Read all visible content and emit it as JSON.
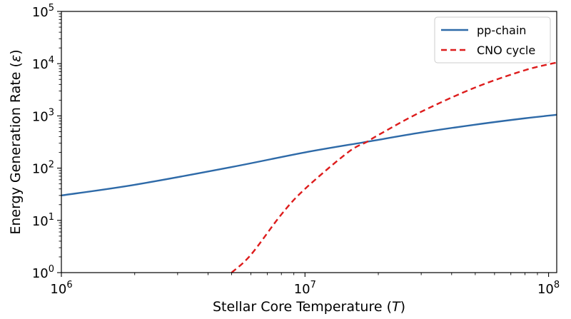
{
  "chart_data": {
    "type": "line",
    "title": "",
    "xlabel": {
      "text": "Stellar Core Temperature (",
      "symbol": "T",
      "suffix": ")"
    },
    "ylabel": {
      "text": "Energy Generation Rate (",
      "symbol": "ε",
      "suffix": ")"
    },
    "xscale": "log",
    "yscale": "log",
    "xlim": [
      1000000,
      108000000
    ],
    "ylim": [
      1,
      100000
    ],
    "xticks": [
      {
        "value": 1000000,
        "base": "10",
        "exp": "6"
      },
      {
        "value": 10000000,
        "base": "10",
        "exp": "7"
      },
      {
        "value": 100000000,
        "base": "10",
        "exp": "8"
      }
    ],
    "yticks": [
      {
        "value": 1,
        "base": "10",
        "exp": "0"
      },
      {
        "value": 10,
        "base": "10",
        "exp": "1"
      },
      {
        "value": 100,
        "base": "10",
        "exp": "2"
      },
      {
        "value": 1000,
        "base": "10",
        "exp": "3"
      },
      {
        "value": 10000,
        "base": "10",
        "exp": "4"
      },
      {
        "value": 100000,
        "base": "10",
        "exp": "5"
      }
    ],
    "grid": false,
    "legend_position": "top-right",
    "series": [
      {
        "name": "pp-chain",
        "color": "#2e6aa8",
        "style": "solid",
        "x": [
          1000000,
          2000000,
          5000000,
          10000000,
          18000000,
          30000000,
          50000000,
          80000000,
          108000000
        ],
        "y": [
          30,
          48,
          105,
          200,
          320,
          480,
          680,
          900,
          1050
        ]
      },
      {
        "name": "CNO cycle",
        "color": "#dd1c1c",
        "style": "dashed",
        "x": [
          5000000,
          6000000,
          8000000,
          10000000,
          15000000,
          18000000,
          20000000,
          30000000,
          50000000,
          80000000,
          108000000
        ],
        "y": [
          1,
          2.2,
          13,
          40,
          200,
          320,
          430,
          1200,
          3500,
          7500,
          10500
        ]
      }
    ]
  }
}
